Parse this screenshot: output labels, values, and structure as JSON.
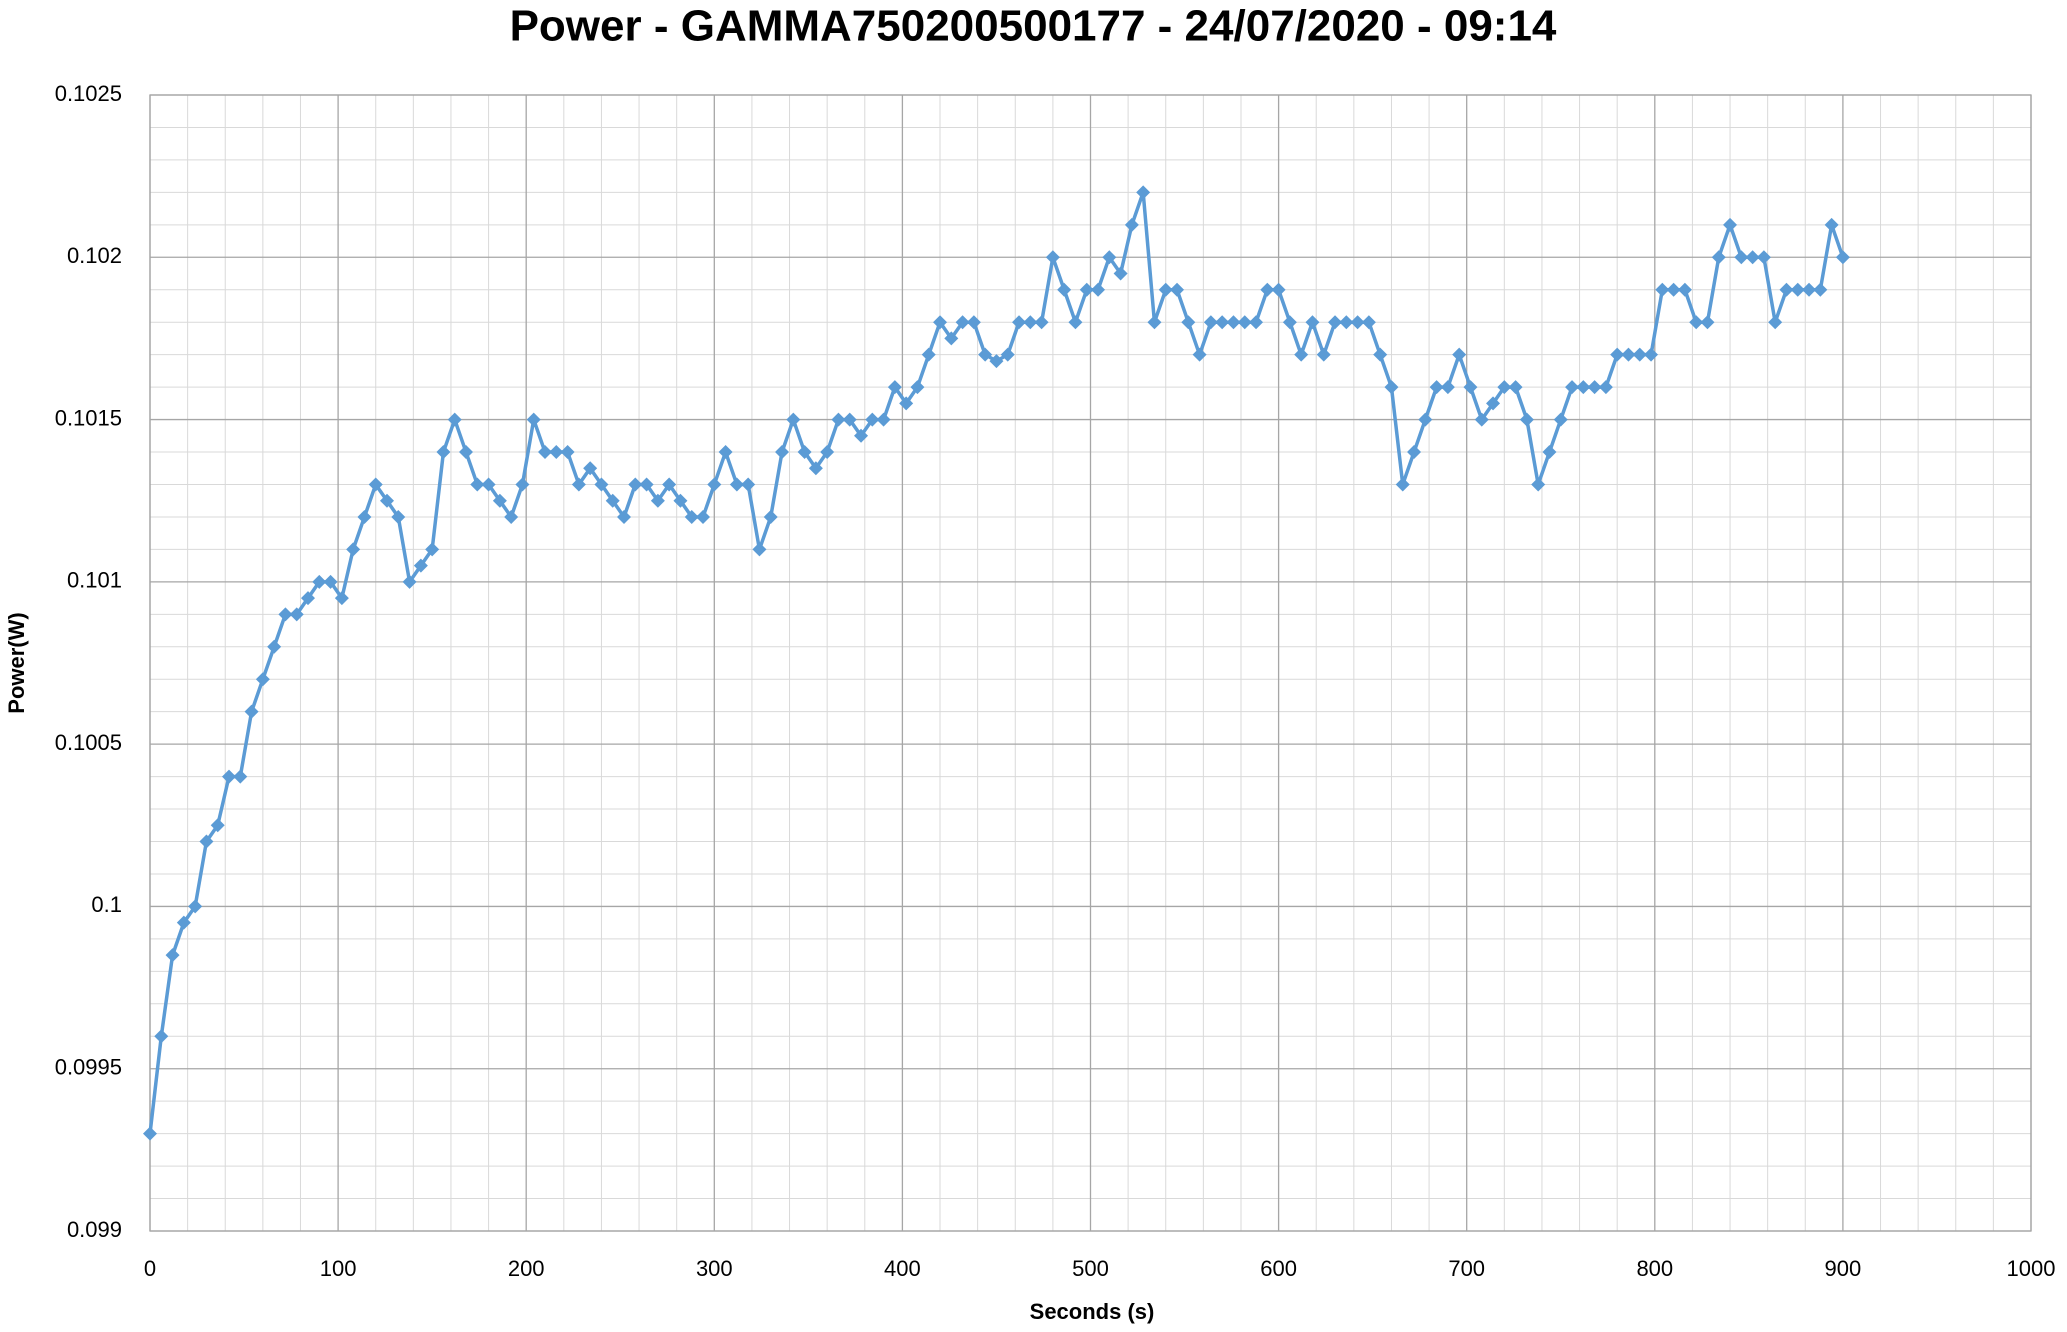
{
  "chart_data": {
    "type": "line",
    "title": "Power - GAMMA750200500177 - 24/07/2020 - 09:14",
    "x_label": "Seconds (s)",
    "y_label": "Power(W)",
    "color": "#5b9bd5",
    "marker": "diamond",
    "grid": true,
    "minor_grid": true,
    "xlim": [
      0,
      1000
    ],
    "xticks": [
      0,
      100,
      200,
      300,
      400,
      500,
      600,
      700,
      800,
      900,
      1000
    ],
    "ylim": [
      0.099,
      0.1025
    ],
    "yticks": [
      0.099,
      0.0995,
      0.1,
      0.1005,
      0.101,
      0.1015,
      0.102,
      0.1025
    ],
    "x": [
      0,
      6,
      12,
      18,
      24,
      30,
      36,
      42,
      48,
      54,
      60,
      66,
      72,
      78,
      84,
      90,
      96,
      102,
      108,
      114,
      120,
      126,
      132,
      138,
      144,
      150,
      156,
      162,
      168,
      174,
      180,
      186,
      192,
      198,
      204,
      210,
      216,
      222,
      228,
      234,
      240,
      246,
      252,
      258,
      264,
      270,
      276,
      282,
      288,
      294,
      300,
      306,
      312,
      318,
      324,
      330,
      336,
      342,
      348,
      354,
      360,
      366,
      372,
      378,
      384,
      390,
      396,
      402,
      408,
      414,
      420,
      426,
      432,
      438,
      444,
      450,
      456,
      462,
      468,
      474,
      480,
      486,
      492,
      498,
      504,
      510,
      516,
      522,
      528,
      534,
      540,
      546,
      552,
      558,
      564,
      570,
      576,
      582,
      588,
      594,
      600,
      606,
      612,
      618,
      624,
      630,
      636,
      642,
      648,
      654,
      660,
      666,
      672,
      678,
      684,
      690,
      696,
      702,
      708,
      714,
      720,
      726,
      732,
      738,
      744,
      750,
      756,
      762,
      768,
      774,
      780,
      786,
      792,
      798,
      804,
      810,
      816,
      822,
      828,
      834,
      840,
      846,
      852,
      858,
      864,
      870,
      876,
      882,
      888,
      894,
      900
    ],
    "values": [
      0.0993,
      0.0996,
      0.09985,
      0.09995,
      0.1,
      0.1002,
      0.10025,
      0.1004,
      0.1004,
      0.1006,
      0.1007,
      0.1008,
      0.1009,
      0.1009,
      0.10095,
      0.101,
      0.101,
      0.10095,
      0.1011,
      0.1012,
      0.1013,
      0.10125,
      0.1012,
      0.101,
      0.10105,
      0.1011,
      0.1014,
      0.1015,
      0.1014,
      0.1013,
      0.1013,
      0.10125,
      0.1012,
      0.1013,
      0.1015,
      0.1014,
      0.1014,
      0.1014,
      0.1013,
      0.10135,
      0.1013,
      0.10125,
      0.1012,
      0.1013,
      0.1013,
      0.10125,
      0.1013,
      0.10125,
      0.1012,
      0.1012,
      0.1013,
      0.1014,
      0.1013,
      0.1013,
      0.1011,
      0.1012,
      0.1014,
      0.1015,
      0.1014,
      0.10135,
      0.1014,
      0.1015,
      0.1015,
      0.10145,
      0.1015,
      0.1015,
      0.1016,
      0.10155,
      0.1016,
      0.1017,
      0.1018,
      0.10175,
      0.1018,
      0.1018,
      0.1017,
      0.10168,
      0.1017,
      0.1018,
      0.1018,
      0.1018,
      0.102,
      0.1019,
      0.1018,
      0.1019,
      0.1019,
      0.102,
      0.10195,
      0.1021,
      0.1022,
      0.1018,
      0.1019,
      0.1019,
      0.1018,
      0.1017,
      0.1018,
      0.1018,
      0.1018,
      0.1018,
      0.1018,
      0.1019,
      0.1019,
      0.1018,
      0.1017,
      0.1018,
      0.1017,
      0.1018,
      0.1018,
      0.1018,
      0.1018,
      0.1017,
      0.1016,
      0.1013,
      0.1014,
      0.1015,
      0.1016,
      0.1016,
      0.1017,
      0.1016,
      0.1015,
      0.10155,
      0.1016,
      0.1016,
      0.1015,
      0.1013,
      0.1014,
      0.1015,
      0.1016,
      0.1016,
      0.1016,
      0.1016,
      0.1017,
      0.1017,
      0.1017,
      0.1017,
      0.1019,
      0.1019,
      0.1019,
      0.1018,
      0.1018,
      0.102,
      0.1021,
      0.102,
      0.102,
      0.102,
      0.1018,
      0.1019,
      0.1019,
      0.1019,
      0.1019,
      0.1021,
      0.102
    ]
  }
}
